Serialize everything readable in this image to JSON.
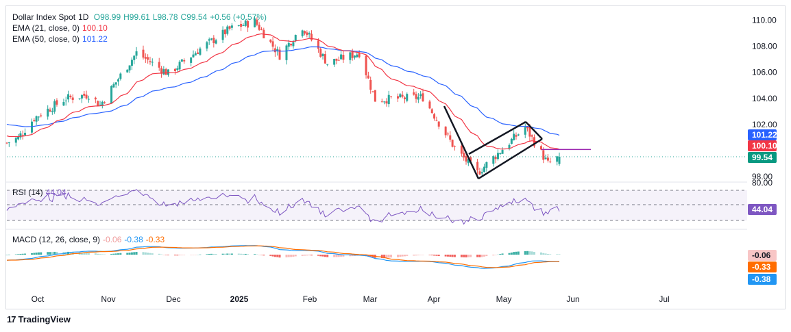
{
  "header": {
    "symbol": "Dollar Index Spot",
    "timeframe": "1D",
    "open": "O98.99",
    "high": "H99.61",
    "low": "L98.78",
    "close": "C99.54",
    "change": "+0.56 (+0.57%)"
  },
  "indicators": {
    "ema21_label": "EMA (21, close, 0)",
    "ema21_value": "100.10",
    "ema50_label": "EMA (50, close, 0)",
    "ema50_value": "101.22",
    "rsi_label": "RSI (14)",
    "rsi_value": "44.04",
    "macd_label": "MACD (12, 26, close, 9)",
    "macd_hist": "-0.06",
    "macd_line": "-0.38",
    "macd_signal": "-0.33"
  },
  "price_badges": {
    "ema50": "101.22",
    "ema21": "100.10",
    "close": "99.54",
    "rsi": "44.04",
    "macd_hist": "-0.06",
    "macd_signal": "-0.33",
    "macd_line": "-0.38"
  },
  "colors": {
    "up": "#26a69a",
    "down": "#ef5350",
    "ema21": "#f23645",
    "ema50": "#2962ff",
    "rsi": "#7e57c2",
    "macd": "#2196f3",
    "signal": "#ff6d00",
    "hline": "#9c27b0",
    "pattern": "#131722"
  },
  "brand": "TradingView",
  "chart_data": {
    "type": "candlestick",
    "title": "Dollar Index Spot, 1D",
    "x_labels": [
      "Oct",
      "Nov",
      "Dec",
      "2025",
      "Feb",
      "Mar",
      "Apr",
      "May",
      "Jun",
      "Jul"
    ],
    "y_ticks": [
      "110.00",
      "108.00",
      "106.00",
      "104.00",
      "102.00",
      "98.00"
    ],
    "ylim": [
      97.5,
      110.8
    ],
    "rsi_ticks": [
      "80.00"
    ],
    "approx_close_path": [
      [
        "2024-09-26",
        100.6
      ],
      [
        "2024-10-01",
        101.0
      ],
      [
        "2024-10-08",
        102.5
      ],
      [
        "2024-10-22",
        104.0
      ],
      [
        "2024-11-01",
        104.3
      ],
      [
        "2024-11-06",
        103.5
      ],
      [
        "2024-11-22",
        107.5
      ],
      [
        "2024-12-06",
        105.9
      ],
      [
        "2024-12-20",
        107.8
      ],
      [
        "2025-01-02",
        109.3
      ],
      [
        "2025-01-13",
        109.9
      ],
      [
        "2025-01-24",
        107.3
      ],
      [
        "2025-02-03",
        109.5
      ],
      [
        "2025-02-14",
        106.7
      ],
      [
        "2025-02-28",
        107.5
      ],
      [
        "2025-03-07",
        103.9
      ],
      [
        "2025-03-28",
        104.1
      ],
      [
        "2025-04-11",
        100.2
      ],
      [
        "2025-04-21",
        98.3
      ],
      [
        "2025-05-12",
        101.8
      ],
      [
        "2025-05-22",
        99.0
      ],
      [
        "2025-05-27",
        99.54
      ]
    ],
    "horizontal_line": 100.1,
    "patterns": "drawn trend lines forming a rising wedge"
  }
}
